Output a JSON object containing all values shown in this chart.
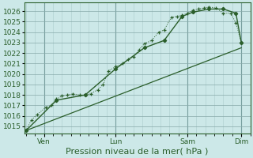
{
  "background_color": "#cce8e8",
  "grid_color_minor": "#aacccc",
  "grid_color_major": "#88aaaa",
  "line_color": "#2a5e2a",
  "marker_color": "#2a5e2a",
  "ylabel_ticks": [
    1015,
    1016,
    1017,
    1018,
    1019,
    1020,
    1021,
    1022,
    1023,
    1024,
    1025,
    1026
  ],
  "ylim": [
    1014.3,
    1026.8
  ],
  "xlabel": "Pression niveau de la mer( hPa )",
  "xlabel_fontsize": 8,
  "tick_fontsize": 6.5,
  "day_labels": [
    "Ven",
    "Lun",
    "Sam",
    "Dim"
  ],
  "day_positions": [
    0.5,
    2.5,
    4.5,
    6.0
  ],
  "vline_color": "#558888",
  "series1": [
    [
      0.0,
      1014.6
    ],
    [
      0.15,
      1015.6
    ],
    [
      0.3,
      1016.1
    ],
    [
      0.55,
      1016.8
    ],
    [
      0.7,
      1017.0
    ],
    [
      0.85,
      1017.6
    ],
    [
      1.0,
      1017.9
    ],
    [
      1.15,
      1018.0
    ],
    [
      1.3,
      1018.1
    ],
    [
      1.5,
      1018.0
    ],
    [
      1.65,
      1018.0
    ],
    [
      1.8,
      1018.1
    ],
    [
      2.0,
      1018.5
    ],
    [
      2.15,
      1019.0
    ],
    [
      2.3,
      1020.3
    ],
    [
      2.5,
      1020.7
    ],
    [
      2.7,
      1021.0
    ],
    [
      2.85,
      1021.4
    ],
    [
      3.0,
      1021.6
    ],
    [
      3.15,
      1022.3
    ],
    [
      3.3,
      1022.9
    ],
    [
      3.5,
      1023.2
    ],
    [
      3.7,
      1024.0
    ],
    [
      3.85,
      1024.2
    ],
    [
      4.05,
      1025.4
    ],
    [
      4.2,
      1025.5
    ],
    [
      4.35,
      1025.6
    ],
    [
      4.5,
      1025.8
    ],
    [
      4.65,
      1026.1
    ],
    [
      4.8,
      1026.2
    ],
    [
      4.95,
      1026.3
    ],
    [
      5.1,
      1026.4
    ],
    [
      5.3,
      1026.3
    ],
    [
      5.5,
      1025.8
    ],
    [
      5.7,
      1025.8
    ],
    [
      5.85,
      1024.9
    ],
    [
      6.0,
      1023.0
    ]
  ],
  "series2": [
    [
      0.0,
      1014.6
    ],
    [
      0.85,
      1017.5
    ],
    [
      1.65,
      1018.0
    ],
    [
      2.5,
      1020.5
    ],
    [
      3.3,
      1022.5
    ],
    [
      3.85,
      1023.2
    ],
    [
      4.35,
      1025.5
    ],
    [
      4.65,
      1025.9
    ],
    [
      5.1,
      1026.2
    ],
    [
      5.5,
      1026.2
    ],
    [
      5.85,
      1025.8
    ],
    [
      6.0,
      1023.0
    ]
  ],
  "series3": [
    [
      0.0,
      1014.6
    ],
    [
      6.0,
      1022.5
    ]
  ]
}
